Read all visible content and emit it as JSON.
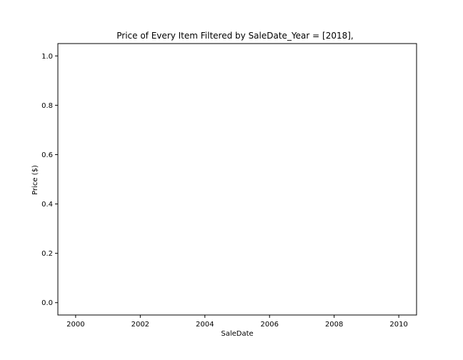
{
  "chart_data": {
    "type": "scatter",
    "title": "Price of Every Item Filtered by SaleDate_Year = [2018],",
    "xlabel": "SaleDate",
    "ylabel": "Price ($)",
    "xlim": [
      1999.45,
      2010.55
    ],
    "ylim": [
      -0.05,
      1.05
    ],
    "x_ticks": [
      2000,
      2002,
      2004,
      2006,
      2008,
      2010
    ],
    "y_ticks": [
      0.0,
      0.2,
      0.4,
      0.6,
      0.8,
      1.0
    ],
    "x_tick_labels": [
      "2000",
      "2002",
      "2004",
      "2006",
      "2008",
      "2010"
    ],
    "y_tick_labels": [
      "0.0",
      "0.2",
      "0.4",
      "0.6",
      "0.8",
      "1.0"
    ],
    "series": [
      {
        "x": [],
        "y": []
      }
    ],
    "grid": false,
    "colors": {
      "axes": "#000000",
      "background": "#ffffff"
    }
  }
}
